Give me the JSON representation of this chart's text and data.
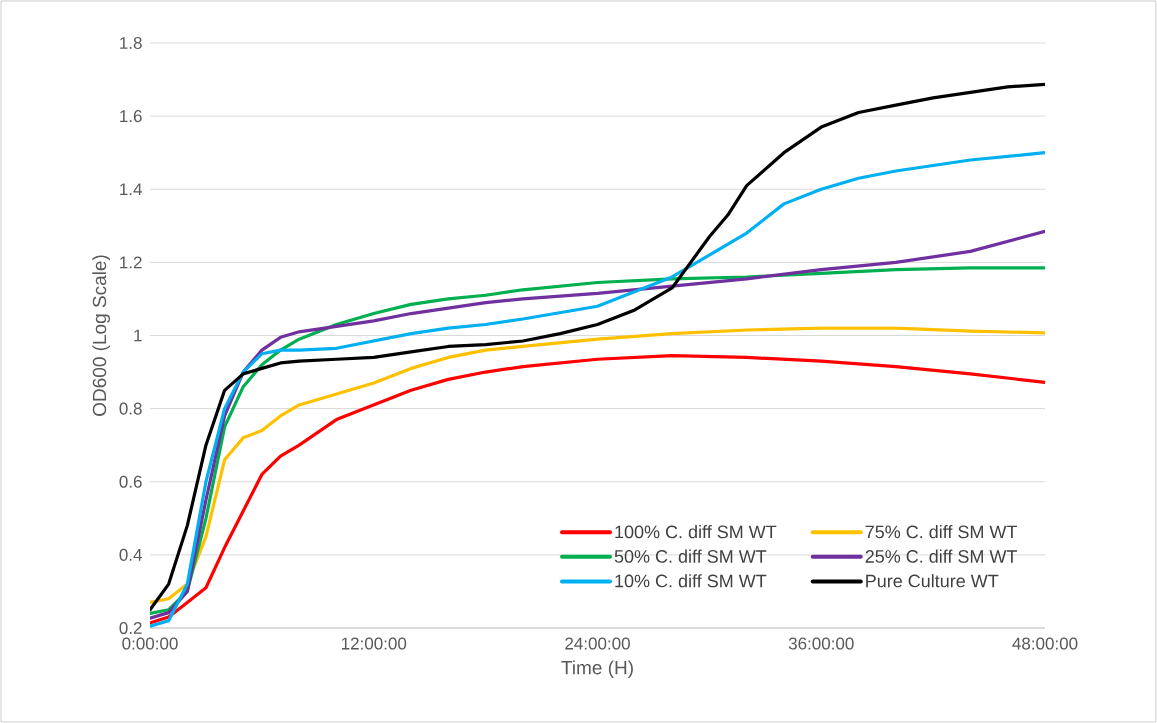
{
  "chart_data": {
    "type": "line",
    "xlabel": "Time (H)",
    "ylabel": "OD600 (Log Scale)",
    "xlim": [
      0,
      48
    ],
    "xticks": [
      {
        "value": 0,
        "label": "0:00:00"
      },
      {
        "value": 12,
        "label": "12:00:00"
      },
      {
        "value": 24,
        "label": "24:00:00"
      },
      {
        "value": 36,
        "label": "36:00:00"
      },
      {
        "value": 48,
        "label": "48:00:00"
      }
    ],
    "ylim": [
      0.2,
      1.8
    ],
    "yticks": [
      0.2,
      0.4,
      0.6,
      0.8,
      1,
      1.2,
      1.4,
      1.6,
      1.8
    ],
    "grid": "y",
    "legend": "bottom right",
    "marker": "none",
    "line_style": "solid",
    "series": [
      {
        "name": "100% C. diff SM WT",
        "color": "#ff0000",
        "x": [
          0,
          1,
          2,
          3,
          4,
          5,
          6,
          7,
          8,
          10,
          12,
          14,
          16,
          18,
          20,
          24,
          28,
          32,
          36,
          40,
          44,
          48
        ],
        "values": [
          0.214,
          0.23,
          0.27,
          0.31,
          0.42,
          0.52,
          0.62,
          0.67,
          0.7,
          0.77,
          0.81,
          0.85,
          0.88,
          0.9,
          0.915,
          0.935,
          0.945,
          0.94,
          0.93,
          0.915,
          0.895,
          0.872
        ]
      },
      {
        "name": "75% C. diff SM WT",
        "color": "#ffc000",
        "x": [
          0,
          1,
          2,
          3,
          4,
          5,
          6,
          7,
          8,
          10,
          12,
          14,
          16,
          18,
          20,
          24,
          28,
          32,
          36,
          40,
          44,
          48
        ],
        "values": [
          0.27,
          0.28,
          0.32,
          0.45,
          0.66,
          0.72,
          0.74,
          0.78,
          0.81,
          0.84,
          0.87,
          0.91,
          0.94,
          0.96,
          0.97,
          0.99,
          1.005,
          1.015,
          1.02,
          1.02,
          1.012,
          1.007
        ]
      },
      {
        "name": "50% C. diff SM WT",
        "color": "#00b050",
        "x": [
          0,
          1,
          2,
          3,
          4,
          5,
          6,
          7,
          8,
          10,
          12,
          14,
          16,
          18,
          20,
          24,
          28,
          32,
          36,
          40,
          44,
          48
        ],
        "values": [
          0.24,
          0.25,
          0.3,
          0.5,
          0.75,
          0.86,
          0.92,
          0.96,
          0.99,
          1.03,
          1.06,
          1.085,
          1.1,
          1.11,
          1.125,
          1.145,
          1.155,
          1.16,
          1.17,
          1.18,
          1.185,
          1.185
        ]
      },
      {
        "name": "25% C. diff SM WT",
        "color": "#7030a0",
        "x": [
          0,
          1,
          2,
          3,
          4,
          5,
          6,
          7,
          8,
          10,
          12,
          14,
          16,
          18,
          20,
          24,
          28,
          32,
          36,
          40,
          44,
          48
        ],
        "values": [
          0.227,
          0.242,
          0.3,
          0.55,
          0.78,
          0.9,
          0.96,
          0.995,
          1.01,
          1.025,
          1.04,
          1.06,
          1.075,
          1.09,
          1.1,
          1.115,
          1.135,
          1.155,
          1.18,
          1.2,
          1.23,
          1.285
        ]
      },
      {
        "name": "10% C. diff SM WT",
        "color": "#00b0f0",
        "x": [
          0,
          1,
          2,
          3,
          4,
          5,
          6,
          7,
          8,
          10,
          12,
          14,
          16,
          18,
          20,
          24,
          26,
          28,
          30,
          32,
          34,
          36,
          38,
          40,
          44,
          48
        ],
        "values": [
          0.205,
          0.22,
          0.32,
          0.6,
          0.8,
          0.9,
          0.95,
          0.96,
          0.96,
          0.965,
          0.985,
          1.005,
          1.02,
          1.03,
          1.045,
          1.08,
          1.12,
          1.16,
          1.22,
          1.28,
          1.36,
          1.4,
          1.43,
          1.45,
          1.48,
          1.5
        ]
      },
      {
        "name": "Pure Culture WT",
        "color": "#000000",
        "x": [
          0,
          1,
          2,
          3,
          4,
          5,
          6,
          7,
          8,
          10,
          12,
          14,
          16,
          18,
          20,
          22,
          24,
          26,
          28,
          29,
          30,
          31,
          32,
          34,
          36,
          38,
          40,
          42,
          44,
          46,
          48
        ],
        "values": [
          0.25,
          0.32,
          0.48,
          0.7,
          0.85,
          0.895,
          0.91,
          0.925,
          0.93,
          0.935,
          0.94,
          0.955,
          0.97,
          0.975,
          0.985,
          1.005,
          1.03,
          1.07,
          1.13,
          1.2,
          1.27,
          1.33,
          1.41,
          1.5,
          1.57,
          1.61,
          1.63,
          1.65,
          1.665,
          1.68,
          1.687
        ]
      }
    ]
  }
}
